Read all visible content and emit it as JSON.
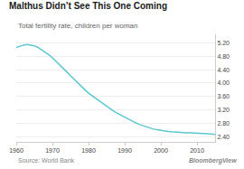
{
  "chart_data": {
    "type": "line",
    "title": "Malthus Didn’t See This One Coming",
    "subtitle": "Total fertility rate, children per woman",
    "annotations": [
      "Source: World Bank",
      "BloombergView"
    ],
    "x": [
      1960,
      1961,
      1962,
      1963,
      1964,
      1965,
      1966,
      1967,
      1968,
      1969,
      1970,
      1971,
      1972,
      1973,
      1974,
      1975,
      1976,
      1977,
      1978,
      1979,
      1980,
      1981,
      1982,
      1983,
      1984,
      1985,
      1986,
      1987,
      1988,
      1989,
      1990,
      1991,
      1992,
      1993,
      1994,
      1995,
      1996,
      1997,
      1998,
      1999,
      2000,
      2001,
      2002,
      2003,
      2004,
      2005,
      2006,
      2007,
      2008,
      2009,
      2010,
      2011,
      2012,
      2013,
      2014,
      2015
    ],
    "values": [
      5.06,
      5.1,
      5.13,
      5.15,
      5.14,
      5.11,
      5.06,
      4.99,
      4.92,
      4.84,
      4.75,
      4.65,
      4.55,
      4.44,
      4.33,
      4.22,
      4.11,
      4.0,
      3.9,
      3.8,
      3.7,
      3.62,
      3.54,
      3.46,
      3.38,
      3.3,
      3.23,
      3.16,
      3.1,
      3.04,
      2.98,
      2.92,
      2.87,
      2.82,
      2.77,
      2.73,
      2.69,
      2.66,
      2.63,
      2.61,
      2.59,
      2.57,
      2.56,
      2.55,
      2.54,
      2.53,
      2.53,
      2.52,
      2.52,
      2.52,
      2.52,
      2.51,
      2.5,
      2.49,
      2.48,
      2.47
    ],
    "color": "#5bc8d0",
    "xlim": [
      1960,
      2015
    ],
    "xticks": [
      1960,
      1970,
      1980,
      1990,
      2000,
      2010
    ],
    "ylim": [
      2.25,
      5.45
    ],
    "yticks": [
      {
        "value": 2.4,
        "label": "2.40"
      },
      {
        "value": 2.8,
        "label": "2.80"
      },
      {
        "value": 3.2,
        "label": "3.20"
      },
      {
        "value": 3.6,
        "label": "3.60"
      },
      {
        "value": 4.0,
        "label": "4.00"
      },
      {
        "value": 4.4,
        "label": "4.40"
      },
      {
        "value": 4.8,
        "label": "4.80"
      },
      {
        "value": 5.2,
        "label": "5.20"
      }
    ],
    "grid": "y"
  }
}
